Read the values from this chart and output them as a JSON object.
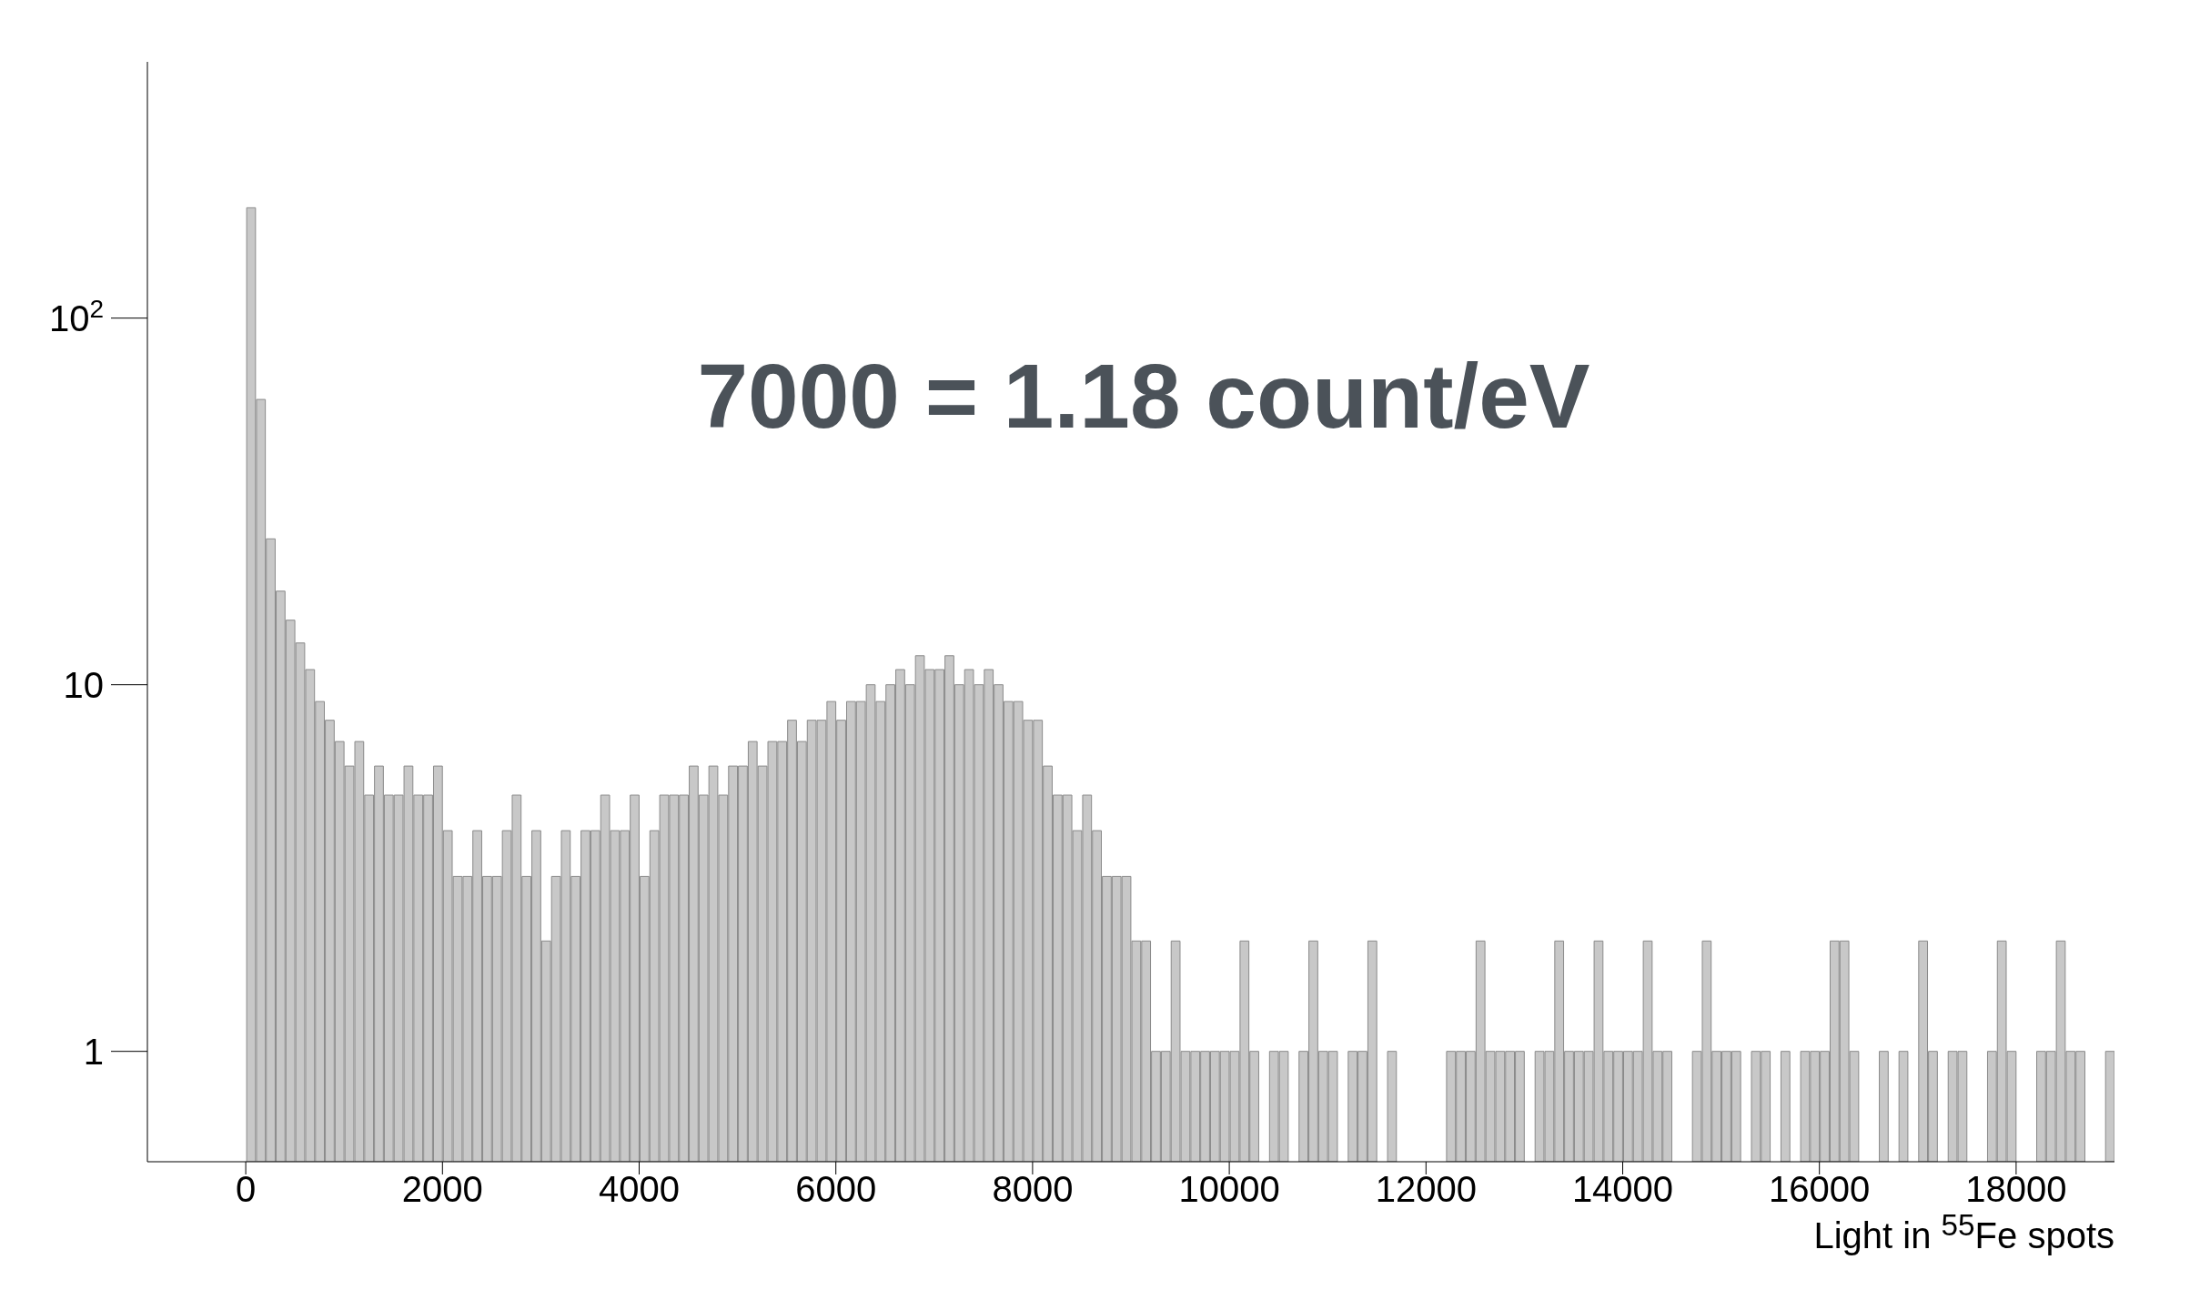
{
  "chart_data": {
    "type": "histogram",
    "xlabel": "Light in $^{55}$Fe spots",
    "annotations": [
      "7000 = 1.18 count/eV"
    ],
    "bins": [
      0,
      100,
      200,
      300,
      400,
      500,
      600,
      700,
      800,
      900,
      1000,
      1100,
      1200,
      1300,
      1400,
      1500,
      1600,
      1700,
      1800,
      1900,
      2000,
      2100,
      2200,
      2300,
      2400,
      2500,
      2600,
      2700,
      2800,
      2900,
      3000,
      3100,
      3200,
      3300,
      3400,
      3500,
      3600,
      3700,
      3800,
      3900,
      4000,
      4100,
      4200,
      4300,
      4400,
      4500,
      4600,
      4700,
      4800,
      4900,
      5000,
      5100,
      5200,
      5300,
      5400,
      5500,
      5600,
      5700,
      5800,
      5900,
      6000,
      6100,
      6200,
      6300,
      6400,
      6500,
      6600,
      6700,
      6800,
      6900,
      7000,
      7100,
      7200,
      7300,
      7400,
      7500,
      7600,
      7700,
      7800,
      7900,
      8000,
      8100,
      8200,
      8300,
      8400,
      8500,
      8600,
      8700,
      8800,
      8900,
      9000,
      9100,
      9200,
      9300,
      9400,
      9500,
      9600,
      9700,
      9800,
      9900,
      10000,
      10100,
      10200,
      10300,
      10400,
      10500,
      10600,
      10700,
      10800,
      10900,
      11000,
      11100,
      11200,
      11300,
      11400,
      11500,
      11600,
      11700,
      11800,
      11900,
      12000,
      12100,
      12200,
      12300,
      12400,
      12500,
      12600,
      12700,
      12800,
      12900,
      13000,
      13100,
      13200,
      13300,
      13400,
      13500,
      13600,
      13700,
      13800,
      13900,
      14000,
      14100,
      14200,
      14300,
      14400,
      14500,
      14600,
      14700,
      14800,
      14900,
      15000,
      15100,
      15200,
      15300,
      15400,
      15500,
      15600,
      15700,
      15800,
      15900,
      16000,
      16100,
      16200,
      16300,
      16400,
      16500,
      16600,
      16700,
      16800,
      16900,
      17000,
      17100,
      17200,
      17300,
      17400,
      17500,
      17600,
      17700,
      17800,
      17900,
      18000,
      18100,
      18200,
      18300,
      18400,
      18500,
      18600,
      18700,
      18800,
      18900,
      19000
    ],
    "values": [
      200,
      60,
      25,
      18,
      15,
      13,
      11,
      9,
      8,
      7,
      6,
      7,
      5,
      6,
      5,
      5,
      6,
      5,
      5,
      6,
      4,
      3,
      3,
      4,
      3,
      3,
      4,
      5,
      3,
      4,
      2,
      3,
      4,
      3,
      4,
      4,
      5,
      4,
      4,
      5,
      3,
      4,
      5,
      5,
      5,
      6,
      5,
      6,
      5,
      6,
      6,
      7,
      6,
      7,
      7,
      8,
      7,
      8,
      8,
      9,
      8,
      9,
      9,
      10,
      9,
      10,
      11,
      10,
      12,
      11,
      11,
      12,
      10,
      11,
      10,
      11,
      10,
      9,
      9,
      8,
      8,
      6,
      5,
      5,
      4,
      5,
      4,
      3,
      3,
      3,
      2,
      2,
      1,
      1,
      2,
      1,
      1,
      1,
      1,
      1,
      1,
      2,
      1,
      null,
      1,
      1,
      null,
      1,
      2,
      1,
      1,
      null,
      1,
      1,
      2,
      null,
      1,
      null,
      null,
      null,
      null,
      null,
      1,
      1,
      1,
      2,
      1,
      1,
      1,
      1,
      null,
      1,
      1,
      2,
      1,
      1,
      1,
      2,
      1,
      1,
      1,
      1,
      2,
      1,
      1,
      null,
      null,
      1,
      2,
      1,
      1,
      1,
      null,
      1,
      1,
      null,
      1,
      null,
      1,
      1,
      1,
      2,
      2,
      1,
      null,
      null,
      1,
      null,
      1,
      null,
      2,
      1,
      null,
      1,
      1,
      null,
      null,
      1,
      2,
      1,
      null,
      null,
      1,
      1,
      2,
      1,
      1,
      null,
      null,
      1
    ],
    "color": "#c8c8c8",
    "log": "y",
    "xlim": [
      -1000,
      19000
    ],
    "xticks": [
      0,
      2000,
      4000,
      6000,
      8000,
      10000,
      12000,
      14000,
      16000,
      18000
    ],
    "ylim": [
      0.5,
      500
    ],
    "yticks": [
      1,
      10,
      {
        "value": 100,
        "label": "10$^{2}$"
      }
    ]
  }
}
